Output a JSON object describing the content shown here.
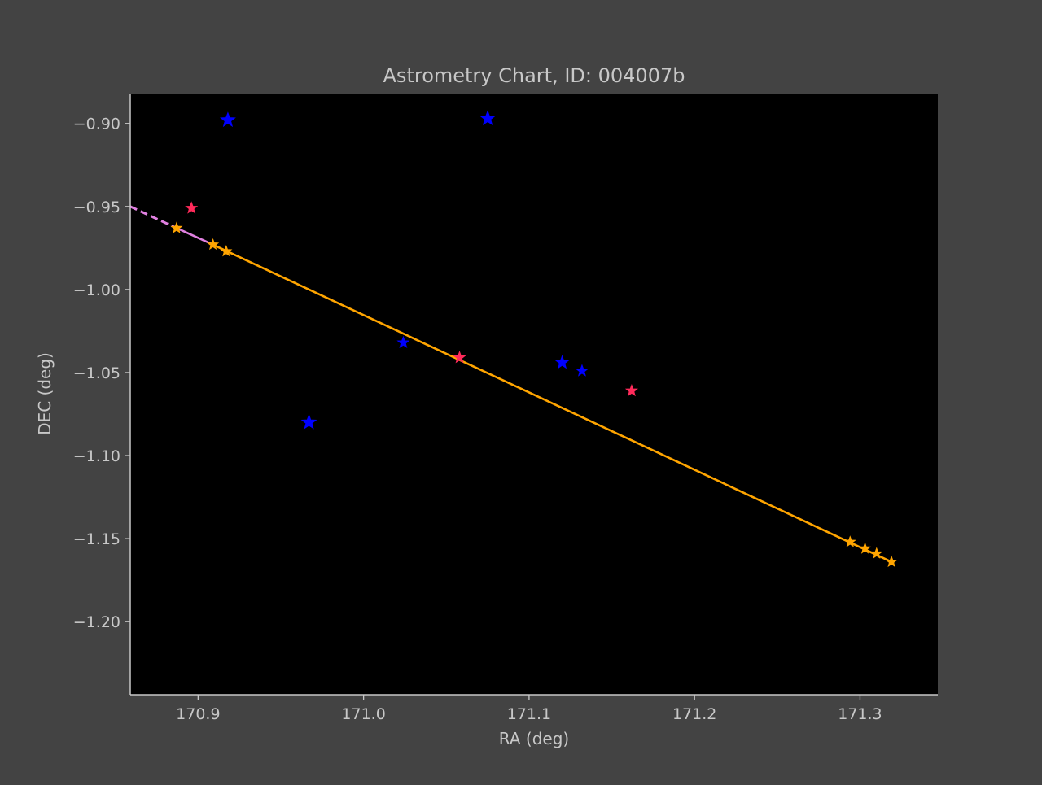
{
  "chart_data": {
    "type": "scatter",
    "title": "Astrometry Chart, ID: 004007b",
    "xlabel": "RA (deg)",
    "ylabel": "DEC (deg)",
    "xlim": [
      170.859,
      171.347
    ],
    "ylim": [
      -1.244,
      -0.882
    ],
    "xticks": [
      {
        "value": 170.9,
        "label": "170.9"
      },
      {
        "value": 171.0,
        "label": "171.0"
      },
      {
        "value": 171.1,
        "label": "171.1"
      },
      {
        "value": 171.2,
        "label": "171.2"
      },
      {
        "value": 171.3,
        "label": "171.3"
      }
    ],
    "yticks": [
      {
        "value": -0.9,
        "label": "−0.90"
      },
      {
        "value": -0.95,
        "label": "−0.95"
      },
      {
        "value": -1.0,
        "label": "−1.00"
      },
      {
        "value": -1.05,
        "label": "−1.05"
      },
      {
        "value": -1.1,
        "label": "−1.10"
      },
      {
        "value": -1.15,
        "label": "−1.15"
      },
      {
        "value": -1.2,
        "label": "−1.20"
      }
    ],
    "grid": false,
    "colors": {
      "figure_bg": "#434343",
      "plot_bg": "#000000",
      "axis": "#c8c8c8",
      "blue_stars": "#0000ff",
      "red_stars": "#ff2a5a",
      "track": "#ffa500",
      "extrapolation": "#e080e0"
    },
    "series": [
      {
        "marker": "star",
        "color": "#0000ff",
        "points": [
          {
            "x": 170.918,
            "y": -0.898,
            "size": 16
          },
          {
            "x": 171.075,
            "y": -0.897,
            "size": 16
          },
          {
            "x": 170.967,
            "y": -1.08,
            "size": 16
          },
          {
            "x": 171.024,
            "y": -1.032,
            "size": 12
          },
          {
            "x": 171.12,
            "y": -1.044,
            "size": 14
          },
          {
            "x": 171.132,
            "y": -1.049,
            "size": 12
          }
        ]
      },
      {
        "marker": "star",
        "color": "#ff2a5a",
        "points": [
          {
            "x": 170.896,
            "y": -0.951,
            "size": 12
          },
          {
            "x": 171.058,
            "y": -1.041,
            "size": 12
          },
          {
            "x": 171.162,
            "y": -1.061,
            "size": 12
          }
        ]
      },
      {
        "marker": "star",
        "line": "solid",
        "color": "#ffa500",
        "line_x": [
          170.909,
          171.319
        ],
        "line_y": [
          -0.973,
          -1.164
        ],
        "points": [
          {
            "x": 170.887,
            "y": -0.963,
            "size": 11
          },
          {
            "x": 170.909,
            "y": -0.973,
            "size": 11
          },
          {
            "x": 170.917,
            "y": -0.977,
            "size": 11
          },
          {
            "x": 171.294,
            "y": -1.152,
            "size": 11
          },
          {
            "x": 171.303,
            "y": -1.156,
            "size": 11
          },
          {
            "x": 171.31,
            "y": -1.159,
            "size": 11
          },
          {
            "x": 171.319,
            "y": -1.164,
            "size": 11
          }
        ]
      },
      {
        "line": "dashed",
        "color": "#e080e0",
        "line_x": [
          170.859,
          170.887
        ],
        "line_y": [
          -0.95,
          -0.963
        ]
      },
      {
        "line": "solid",
        "color": "#e080e0",
        "line_x": [
          170.887,
          170.909
        ],
        "line_y": [
          -0.963,
          -0.973
        ]
      }
    ]
  }
}
